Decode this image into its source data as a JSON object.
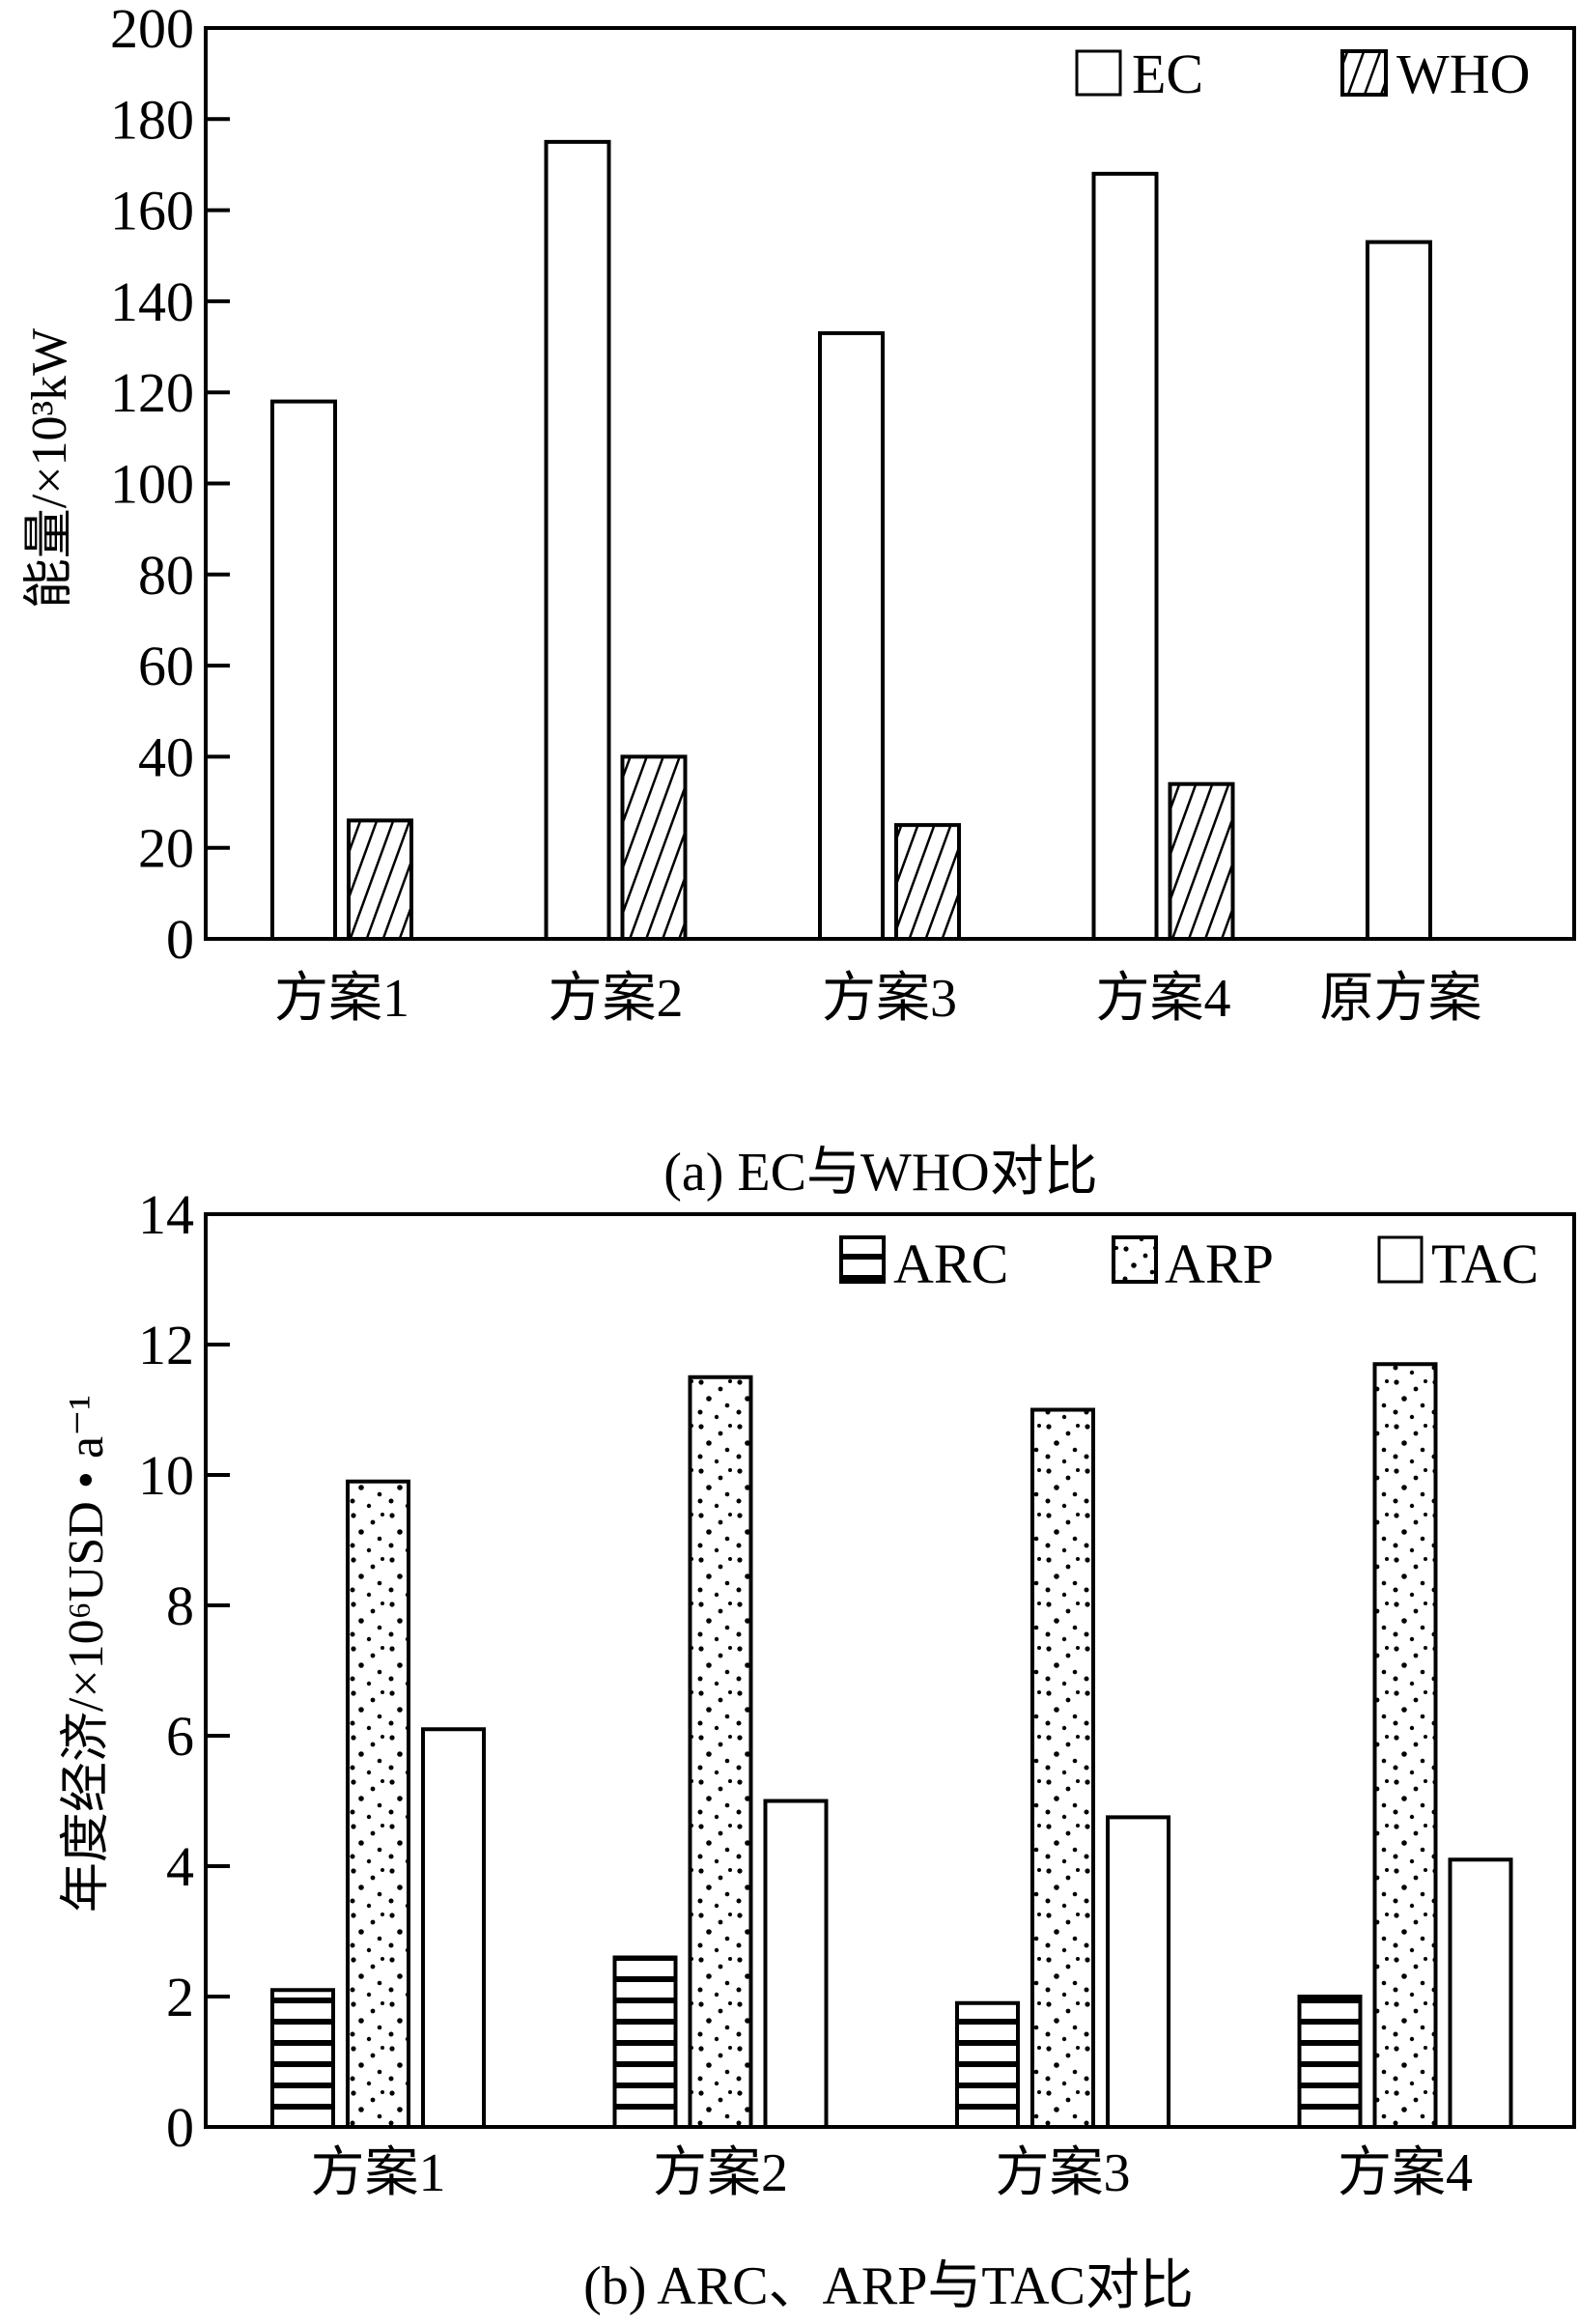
{
  "chart_data": [
    {
      "type": "bar",
      "title": "(a) EC与WHO对比",
      "xlabel": "",
      "ylabel": "能量/×10³kW",
      "ylim": [
        0,
        200
      ],
      "yticks": [
        "0",
        "20",
        "40",
        "60",
        "80",
        "100",
        "120",
        "140",
        "160",
        "180",
        "200"
      ],
      "categories": [
        "方案1",
        "方案2",
        "方案3",
        "方案4",
        "原方案"
      ],
      "series": [
        {
          "name": "EC",
          "pattern": "empty",
          "values": [
            118,
            175,
            133,
            168,
            153
          ]
        },
        {
          "name": "WHO",
          "pattern": "diagonal-hatch",
          "values": [
            26,
            40,
            25,
            34,
            null
          ]
        }
      ],
      "legend": "top-right",
      "grid": false
    },
    {
      "type": "bar",
      "title": "(b) ARC、ARP与TAC对比",
      "xlabel": "",
      "ylabel": "年度经济/×10⁶USD • a⁻¹",
      "ylim": [
        0,
        14
      ],
      "yticks": [
        "0",
        "2",
        "4",
        "6",
        "8",
        "10",
        "12",
        "14"
      ],
      "categories": [
        "方案1",
        "方案2",
        "方案3",
        "方案4"
      ],
      "series": [
        {
          "name": "ARC",
          "pattern": "horizontal-lines",
          "values": [
            2.1,
            2.6,
            1.9,
            2.0
          ]
        },
        {
          "name": "ARP",
          "pattern": "dots",
          "values": [
            9.9,
            11.5,
            11.0,
            11.7
          ]
        },
        {
          "name": "TAC",
          "pattern": "empty",
          "values": [
            6.1,
            5.0,
            4.75,
            4.1
          ]
        }
      ],
      "legend": "top-right",
      "grid": false
    }
  ]
}
